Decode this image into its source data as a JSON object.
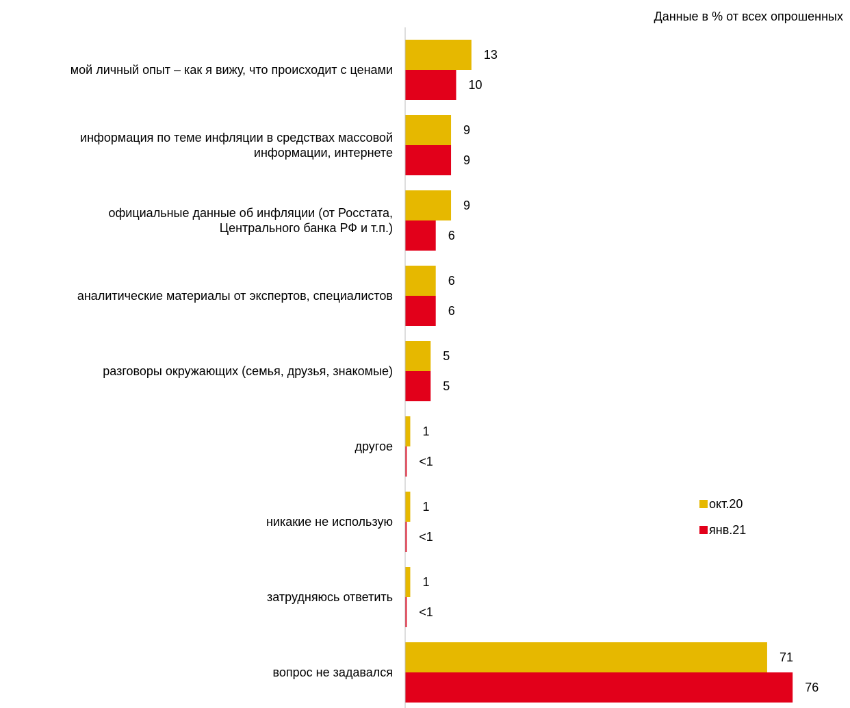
{
  "chart_data": {
    "type": "bar",
    "orientation": "horizontal",
    "note": "Данные в % от всех опрошенных",
    "categories": [
      [
        "мой личный опыт – как я вижу, что происходит с ценами"
      ],
      [
        "информация по теме инфляции в средствах массовой",
        "информации, интернете"
      ],
      [
        "официальные данные об инфляции (от Росстата,",
        "Центрального банка РФ и т.п.)"
      ],
      [
        "аналитические материалы от экспертов, специалистов"
      ],
      [
        "разговоры окружающих (семья, друзья, знакомые)"
      ],
      [
        "другое"
      ],
      [
        "никакие не использую"
      ],
      [
        "затрудняюсь ответить"
      ],
      [
        "вопрос не задавался"
      ]
    ],
    "series": [
      {
        "name": "окт.20",
        "color": "#E6B800",
        "values": [
          13,
          9,
          9,
          6,
          5,
          1,
          1,
          1,
          71
        ],
        "labels": [
          "13",
          "9",
          "9",
          "6",
          "5",
          "1",
          "1",
          "1",
          "71"
        ]
      },
      {
        "name": "янв.21",
        "color": "#E2001A",
        "values": [
          10,
          9,
          6,
          6,
          5,
          0.3,
          0.3,
          0.3,
          76
        ],
        "labels": [
          "10",
          "9",
          "6",
          "6",
          "5",
          "<1",
          "<1",
          "<1",
          "76"
        ]
      }
    ],
    "xlim": [
      0,
      78
    ],
    "grid": false,
    "legend_position": "right-middle"
  }
}
